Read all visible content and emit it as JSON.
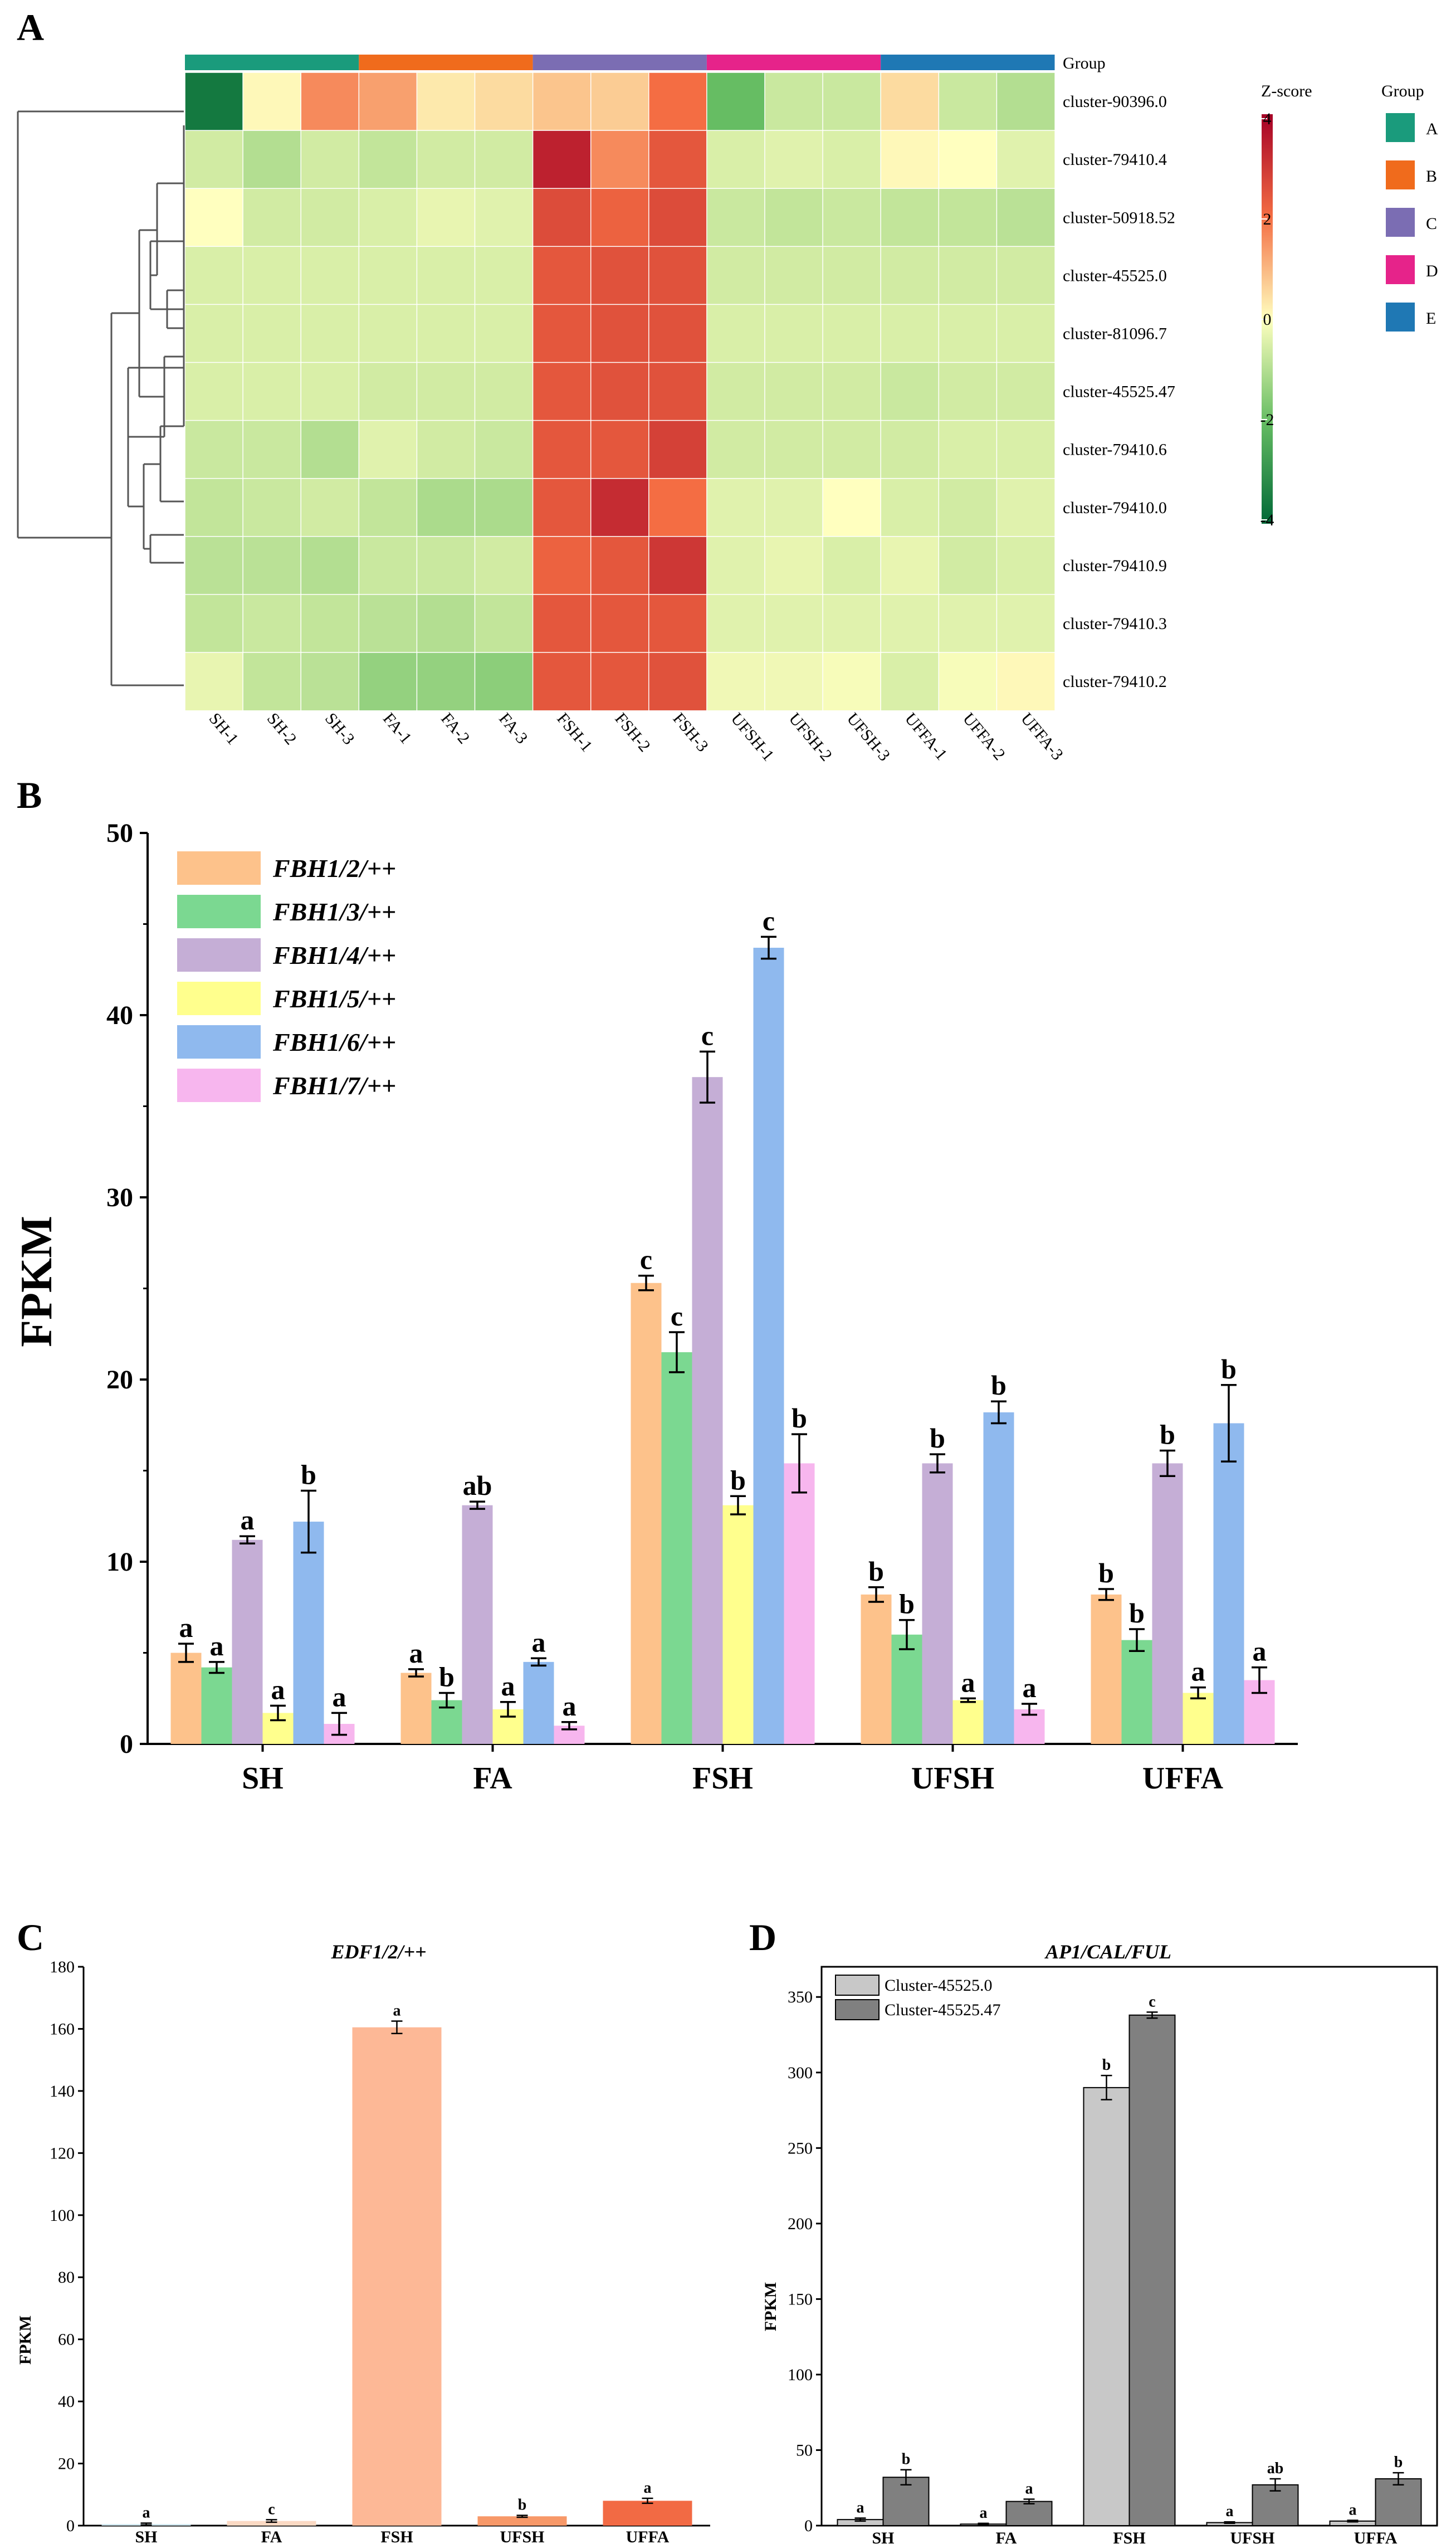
{
  "panel_labels": [
    "A",
    "B",
    "C",
    "D"
  ],
  "colors": {
    "group_A": "#1a9b7c",
    "group_B": "#f06b1c",
    "group_C": "#7b6db3",
    "group_D": "#e6238a",
    "group_E": "#1f78b4",
    "heat_low": "#006837",
    "heat_mid": "#ffffbf",
    "heat_high": "#a50026",
    "fbh_series": [
      "#fdc28b",
      "#7bd891",
      "#c5aed6",
      "#ffff8d",
      "#8fb9ee",
      "#f7b6ee"
    ],
    "edf_bars": [
      "#cfe6ee",
      "#fbd9c3",
      "#fdb896",
      "#f79868",
      "#f26a44"
    ],
    "ap1_series": [
      "#c8c8c8",
      "#808080"
    ]
  },
  "chart_data": [
    {
      "type": "heatmap",
      "panel": "A",
      "group_bar_label": "Group",
      "colorbar_title": "Z-score",
      "colorbar_range": [
        -4,
        4
      ],
      "colorbar_ticks": [
        "4",
        "2",
        "0",
        "-2",
        "-4"
      ],
      "group_legend_title": "Group",
      "groups": [
        "A",
        "B",
        "C",
        "D",
        "E"
      ],
      "columns": [
        "SH-1",
        "SH-2",
        "SH-3",
        "FA-1",
        "FA-2",
        "FA-3",
        "FSH-1",
        "FSH-2",
        "FSH-3",
        "UFSH-1",
        "UFSH-2",
        "UFSH-3",
        "UFFA-1",
        "UFFA-2",
        "UFFA-3"
      ],
      "rows": [
        "cluster-90396.0",
        "cluster-79410.4",
        "cluster-50918.52",
        "cluster-45525.0",
        "cluster-81096.7",
        "cluster-45525.47",
        "cluster-79410.6",
        "cluster-79410.0",
        "cluster-79410.9",
        "cluster-79410.3",
        "cluster-79410.2"
      ],
      "values": [
        [
          -3.6,
          0.1,
          1.6,
          1.3,
          0.3,
          0.5,
          0.8,
          0.7,
          2.0,
          -2.0,
          -0.7,
          -0.7,
          0.5,
          -0.7,
          -1.0
        ],
        [
          -0.6,
          -1.0,
          -0.6,
          -0.8,
          -0.6,
          -0.6,
          3.4,
          1.6,
          2.4,
          -0.5,
          -0.4,
          -0.5,
          0.1,
          0.0,
          -0.4
        ],
        [
          0.0,
          -0.6,
          -0.6,
          -0.5,
          -0.3,
          -0.4,
          2.6,
          2.2,
          2.6,
          -0.7,
          -0.8,
          -0.7,
          -0.8,
          -0.8,
          -0.9
        ],
        [
          -0.5,
          -0.5,
          -0.5,
          -0.5,
          -0.5,
          -0.5,
          2.4,
          2.5,
          2.5,
          -0.6,
          -0.6,
          -0.6,
          -0.6,
          -0.6,
          -0.6
        ],
        [
          -0.5,
          -0.5,
          -0.5,
          -0.5,
          -0.5,
          -0.5,
          2.4,
          2.5,
          2.5,
          -0.5,
          -0.5,
          -0.5,
          -0.5,
          -0.5,
          -0.5
        ],
        [
          -0.5,
          -0.5,
          -0.5,
          -0.6,
          -0.6,
          -0.6,
          2.4,
          2.5,
          2.5,
          -0.6,
          -0.6,
          -0.6,
          -0.7,
          -0.6,
          -0.6
        ],
        [
          -0.7,
          -0.7,
          -1.0,
          -0.4,
          -0.6,
          -0.7,
          2.4,
          2.4,
          2.8,
          -0.6,
          -0.6,
          -0.6,
          -0.6,
          -0.5,
          -0.5
        ],
        [
          -0.8,
          -0.7,
          -0.6,
          -0.8,
          -1.1,
          -1.1,
          2.4,
          3.2,
          2.0,
          -0.4,
          -0.4,
          0.0,
          -0.5,
          -0.6,
          -0.4
        ],
        [
          -0.9,
          -0.9,
          -1.0,
          -0.7,
          -0.7,
          -0.6,
          2.2,
          2.4,
          3.0,
          -0.4,
          -0.3,
          -0.5,
          -0.3,
          -0.6,
          -0.5
        ],
        [
          -0.8,
          -0.7,
          -0.8,
          -0.9,
          -1.0,
          -0.8,
          2.4,
          2.4,
          2.4,
          -0.4,
          -0.4,
          -0.4,
          -0.4,
          -0.4,
          -0.4
        ],
        [
          -0.3,
          -0.8,
          -0.9,
          -1.4,
          -1.4,
          -1.5,
          2.4,
          2.4,
          2.5,
          -0.2,
          -0.2,
          -0.1,
          -0.5,
          -0.1,
          0.1
        ]
      ]
    },
    {
      "type": "bar",
      "panel": "B",
      "ylabel": "FPKM",
      "xlabel": "",
      "ylim": [
        0,
        50
      ],
      "yticks": [
        0,
        10,
        20,
        30,
        40,
        50
      ],
      "categories": [
        "SH",
        "FA",
        "FSH",
        "UFSH",
        "UFFA"
      ],
      "legend_position": "top-left",
      "series": [
        {
          "name": "FBH1/2/++",
          "values": [
            5.0,
            3.9,
            25.3,
            8.2,
            8.2
          ],
          "errors": [
            0.5,
            0.2,
            0.4,
            0.4,
            0.3
          ],
          "sig": [
            "a",
            "a",
            "c",
            "b",
            "b"
          ]
        },
        {
          "name": "FBH1/3/++",
          "values": [
            4.2,
            2.4,
            21.5,
            6.0,
            5.7
          ],
          "errors": [
            0.3,
            0.4,
            1.1,
            0.8,
            0.6
          ],
          "sig": [
            "a",
            "b",
            "c",
            "b",
            "b"
          ]
        },
        {
          "name": "FBH1/4/++",
          "values": [
            11.2,
            13.1,
            36.6,
            15.4,
            15.4
          ],
          "errors": [
            0.2,
            0.2,
            1.4,
            0.5,
            0.7
          ],
          "sig": [
            "a",
            "ab",
            "c",
            "b",
            "b"
          ]
        },
        {
          "name": "FBH1/5/++",
          "values": [
            1.7,
            1.9,
            13.1,
            2.4,
            2.8
          ],
          "errors": [
            0.4,
            0.4,
            0.5,
            0.1,
            0.3
          ],
          "sig": [
            "a",
            "a",
            "b",
            "a",
            "a"
          ]
        },
        {
          "name": "FBH1/6/++",
          "values": [
            12.2,
            4.5,
            43.7,
            18.2,
            17.6
          ],
          "errors": [
            1.7,
            0.2,
            0.6,
            0.6,
            2.1
          ],
          "sig": [
            "b",
            "a",
            "c",
            "b",
            "b"
          ]
        },
        {
          "name": "FBH1/7/++",
          "values": [
            1.1,
            1.0,
            15.4,
            1.9,
            3.5
          ],
          "errors": [
            0.6,
            0.2,
            1.6,
            0.3,
            0.7
          ],
          "sig": [
            "a",
            "a",
            "b",
            "a",
            "a"
          ]
        }
      ]
    },
    {
      "type": "bar",
      "panel": "C",
      "title": "EDF1/2/++",
      "ylabel": "FPKM",
      "xlabel": "",
      "ylim": [
        0,
        180
      ],
      "yticks": [
        0,
        20,
        40,
        60,
        80,
        100,
        120,
        140,
        160,
        180
      ],
      "categories": [
        "SH",
        "FA",
        "FSH",
        "UFSH",
        "UFFA"
      ],
      "values": [
        0.5,
        1.5,
        160.5,
        3.0,
        8.0
      ],
      "errors": [
        0.3,
        0.4,
        2.0,
        0.3,
        0.8
      ],
      "sig": [
        "a",
        "c",
        "a",
        "b",
        "a"
      ]
    },
    {
      "type": "bar",
      "panel": "D",
      "title": "AP1/CAL/FUL",
      "ylabel": "FPKM",
      "xlabel": "",
      "ylim": [
        0,
        370
      ],
      "yticks": [
        0,
        50,
        100,
        150,
        200,
        250,
        300,
        350
      ],
      "categories": [
        "SH",
        "FA",
        "FSH",
        "UFSH",
        "UFFA"
      ],
      "legend_position": "top-left",
      "series": [
        {
          "name": "Cluster-45525.0",
          "values": [
            4,
            1,
            290,
            2,
            3
          ],
          "errors": [
            1,
            0.5,
            8,
            0.5,
            0.5
          ],
          "sig": [
            "a",
            "a",
            "b",
            "a",
            "a"
          ]
        },
        {
          "name": "Cluster-45525.47",
          "values": [
            32,
            16,
            338,
            27,
            31
          ],
          "errors": [
            5,
            1.5,
            2,
            4,
            4
          ],
          "sig": [
            "b",
            "a",
            "c",
            "ab",
            "b"
          ]
        }
      ]
    }
  ]
}
